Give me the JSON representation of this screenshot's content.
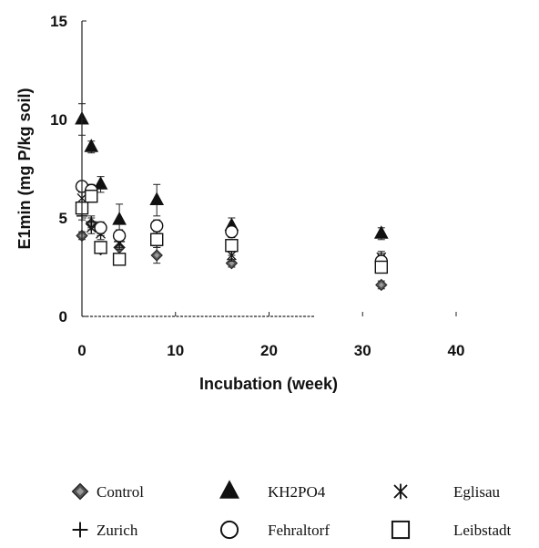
{
  "chart_data": {
    "type": "scatter",
    "title": "",
    "xlabel": "Incubation (week)",
    "ylabel": "E1min (mg P/kg soil)",
    "xlim": [
      0,
      40
    ],
    "ylim": [
      0,
      15
    ],
    "xticks": [
      "0",
      "10",
      "20",
      "30",
      "40"
    ],
    "yticks": [
      "0",
      "5",
      "10",
      "15"
    ],
    "grid": false,
    "legend_position": "bottom",
    "series": [
      {
        "name": "Control",
        "marker": "diamond",
        "points": [
          {
            "x": 0,
            "y": 4.1,
            "err": 0.2
          },
          {
            "x": 1,
            "y": 4.7,
            "err": 0.3
          },
          {
            "x": 2,
            "y": 3.4,
            "err": 0.2
          },
          {
            "x": 4,
            "y": 3.5,
            "err": 0.3
          },
          {
            "x": 8,
            "y": 3.1,
            "err": 0.4
          },
          {
            "x": 16,
            "y": 2.7,
            "err": 0.2
          },
          {
            "x": 32,
            "y": 1.6,
            "err": 0.2
          }
        ]
      },
      {
        "name": "KH2PO4",
        "marker": "triangle",
        "points": [
          {
            "x": 0,
            "y": 10.0,
            "err": 0.8
          },
          {
            "x": 1,
            "y": 8.6,
            "err": 0.3
          },
          {
            "x": 2,
            "y": 6.7,
            "err": 0.4
          },
          {
            "x": 4,
            "y": 4.9,
            "err": 0.8
          },
          {
            "x": 8,
            "y": 5.9,
            "err": 0.8
          },
          {
            "x": 16,
            "y": 4.6,
            "err": 0.4
          },
          {
            "x": 32,
            "y": 4.2,
            "err": 0.3
          }
        ]
      },
      {
        "name": "Eglisau",
        "marker": "asterisk",
        "points": [
          {
            "x": 0,
            "y": 6.0,
            "err": 0.3
          },
          {
            "x": 1,
            "y": 4.5,
            "err": 0.3
          },
          {
            "x": 2,
            "y": 4.2,
            "err": 0.3
          },
          {
            "x": 4,
            "y": 3.7,
            "err": 0.3
          },
          {
            "x": 8,
            "y": 3.8,
            "err": 0.3
          },
          {
            "x": 16,
            "y": 3.1,
            "err": 0.3
          },
          {
            "x": 32,
            "y": 3.0,
            "err": 0.3
          }
        ]
      },
      {
        "name": "Zurich",
        "marker": "plus",
        "points": [
          {
            "x": 0,
            "y": 5.1,
            "err": 0.2
          },
          {
            "x": 1,
            "y": 4.8,
            "err": 0.3
          },
          {
            "x": 2,
            "y": 4.4,
            "err": 0.3
          },
          {
            "x": 4,
            "y": 3.8,
            "err": 0.3
          },
          {
            "x": 8,
            "y": 4.1,
            "err": 0.3
          },
          {
            "x": 16,
            "y": 3.4,
            "err": 0.3
          },
          {
            "x": 32,
            "y": 2.9,
            "err": 0.3
          }
        ]
      },
      {
        "name": "Fehraltorf",
        "marker": "circle",
        "points": [
          {
            "x": 0,
            "y": 6.6,
            "err": 0.2
          },
          {
            "x": 1,
            "y": 6.4,
            "err": 0.3
          },
          {
            "x": 2,
            "y": 4.5,
            "err": 0.3
          },
          {
            "x": 4,
            "y": 4.1,
            "err": 0.3
          },
          {
            "x": 8,
            "y": 4.6,
            "err": 0.3
          },
          {
            "x": 16,
            "y": 4.3,
            "err": 0.3
          },
          {
            "x": 32,
            "y": 2.8,
            "err": 0.3
          }
        ]
      },
      {
        "name": "Leibstadt",
        "marker": "square",
        "points": [
          {
            "x": 0,
            "y": 5.5,
            "err": 0.3
          },
          {
            "x": 1,
            "y": 6.1,
            "err": 0.3
          },
          {
            "x": 2,
            "y": 3.5,
            "err": 0.3
          },
          {
            "x": 4,
            "y": 2.9,
            "err": 0.2
          },
          {
            "x": 8,
            "y": 3.9,
            "err": 0.3
          },
          {
            "x": 16,
            "y": 3.6,
            "err": 0.3
          },
          {
            "x": 32,
            "y": 2.5,
            "err": 0.3
          }
        ]
      }
    ]
  }
}
